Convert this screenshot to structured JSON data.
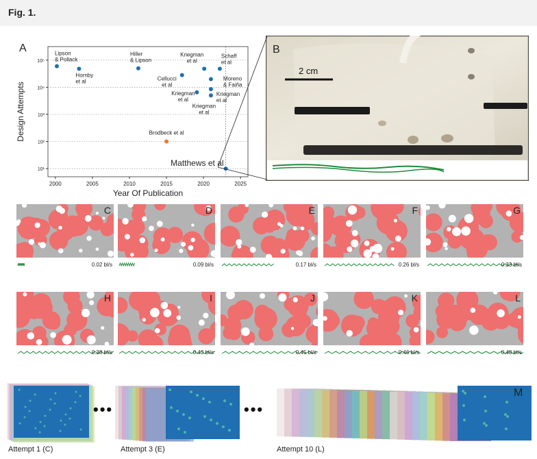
{
  "figure_label": "Fig. 1.",
  "panel_letters": {
    "a": "A",
    "b": "B",
    "m": "M"
  },
  "chart_data": {
    "type": "scatter",
    "xlabel": "Year Of Publication",
    "ylabel": "Design Attempts",
    "log_y": true,
    "xlim": [
      1999,
      2026
    ],
    "ylim_exp": [
      0.7,
      5.5
    ],
    "x_ticks": [
      "2000",
      "2005",
      "2010",
      "2015",
      "2020",
      "2025"
    ],
    "y_ticks": [
      "10¹",
      "10²",
      "10³",
      "10⁴",
      "10⁵"
    ],
    "grid": "dotted horizontal",
    "points": [
      {
        "x": 2000.2,
        "y": 60000,
        "label": "Lipson & Pollack",
        "color": "#1f6fb2"
      },
      {
        "x": 2003.2,
        "y": 48000,
        "label": "Hornby et al",
        "color": "#1f6fb2"
      },
      {
        "x": 2011.2,
        "y": 50000,
        "label": "Hiller & Lipson",
        "color": "#1f6fb2"
      },
      {
        "x": 2017.1,
        "y": 28000,
        "label": "Cellucci et al",
        "color": "#1f6fb2"
      },
      {
        "x": 2020.1,
        "y": 48000,
        "label": "Kriegman et al",
        "color": "#1f6fb2"
      },
      {
        "x": 2022.2,
        "y": 48000,
        "label": "Schaff et al",
        "color": "#1f6fb2"
      },
      {
        "x": 2021.0,
        "y": 20000,
        "label": "Moreno & Faiña",
        "color": "#1f6fb2"
      },
      {
        "x": 2019.1,
        "y": 6500,
        "label": "Kriegman et al",
        "color": "#1f6fb2"
      },
      {
        "x": 2021.0,
        "y": 8500,
        "label": "Kriegman et al",
        "color": "#1f6fb2"
      },
      {
        "x": 2021.0,
        "y": 5000,
        "label": "Kriegman et al",
        "color": "#1f6fb2"
      },
      {
        "x": 2015.0,
        "y": 100,
        "label": "Brodbeck et al",
        "color": "#f07a2c"
      },
      {
        "x": 2023.0,
        "y": 10,
        "label": "Matthews et al",
        "color": "#1f6fb2"
      }
    ],
    "reference_line_x": 2023
  },
  "photo": {
    "scale_label": "2 cm"
  },
  "thumbs": [
    {
      "letter": "C",
      "speed": "0.02 bl/s"
    },
    {
      "letter": "D",
      "speed": "0.09 bl/s"
    },
    {
      "letter": "E",
      "speed": "0.17 bl/s"
    },
    {
      "letter": "F",
      "speed": "0.26 bl/s"
    },
    {
      "letter": "G",
      "speed": "0.33 bl/s"
    },
    {
      "letter": "H",
      "speed": "0.38 bl/s"
    },
    {
      "letter": "I",
      "speed": "0.43 bl/s"
    },
    {
      "letter": "J",
      "speed": "0.45 bl/s"
    },
    {
      "letter": "K",
      "speed": "0.46 bl/s"
    },
    {
      "letter": "L",
      "speed": "0.48 bl/s"
    }
  ],
  "attempts": [
    "Attempt 1 (C)",
    "Attempt 3 (E)",
    "Attempt 10 (L)"
  ],
  "ellipsis": "•••",
  "colors": {
    "robot": "#ef6e6e",
    "background": "#b3b3b3",
    "trace": "#1f8a3a",
    "blue": "#1f6fb2",
    "orange": "#f07a2c"
  }
}
